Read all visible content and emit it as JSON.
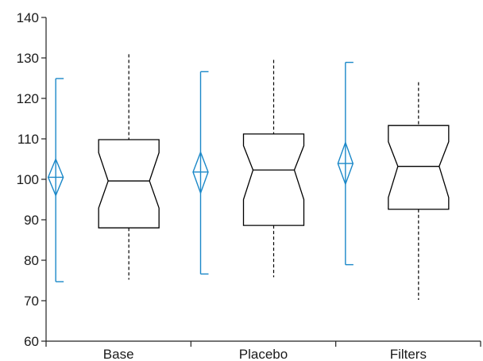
{
  "chart_data": {
    "type": "box",
    "categories": [
      "Base",
      "Placebo",
      "Filters"
    ],
    "ylim": [
      60,
      140
    ],
    "yticks": [
      60,
      70,
      80,
      90,
      100,
      110,
      120,
      130,
      140
    ],
    "ytick_labels": [
      "60",
      "70",
      "80",
      "90",
      "100",
      "110",
      "120",
      "130",
      "140"
    ],
    "title": "",
    "xlabel": "",
    "ylabel": "",
    "grid": false,
    "mean_ci_series": [
      {
        "category": "Base",
        "mean": 100.5,
        "ci_low": 96,
        "ci_high": 105,
        "low": 74.7,
        "high": 124.9
      },
      {
        "category": "Placebo",
        "mean": 101.8,
        "ci_low": 96.6,
        "ci_high": 106.7,
        "low": 76.6,
        "high": 126.6
      },
      {
        "category": "Filters",
        "mean": 103.9,
        "ci_low": 98.8,
        "ci_high": 109.1,
        "low": 78.9,
        "high": 128.9
      }
    ],
    "box_series": [
      {
        "category": "Base",
        "whisker_low": 75.2,
        "q1": 88,
        "notch_low": 92.9,
        "median": 99.6,
        "notch_high": 106.6,
        "q3": 109.8,
        "whisker_high": 130.9
      },
      {
        "category": "Placebo",
        "whisker_low": 75.8,
        "q1": 88.6,
        "notch_low": 95,
        "median": 102.3,
        "notch_high": 108.3,
        "q3": 111.2,
        "whisker_high": 129.5
      },
      {
        "category": "Filters",
        "whisker_low": 70.2,
        "q1": 92.6,
        "notch_low": 95.5,
        "median": 103.2,
        "notch_high": 109.3,
        "q3": 113.3,
        "whisker_high": 124
      }
    ],
    "colors": {
      "mean_ci": "#1b88c8",
      "box": "#000000",
      "axis": "#222222"
    }
  }
}
